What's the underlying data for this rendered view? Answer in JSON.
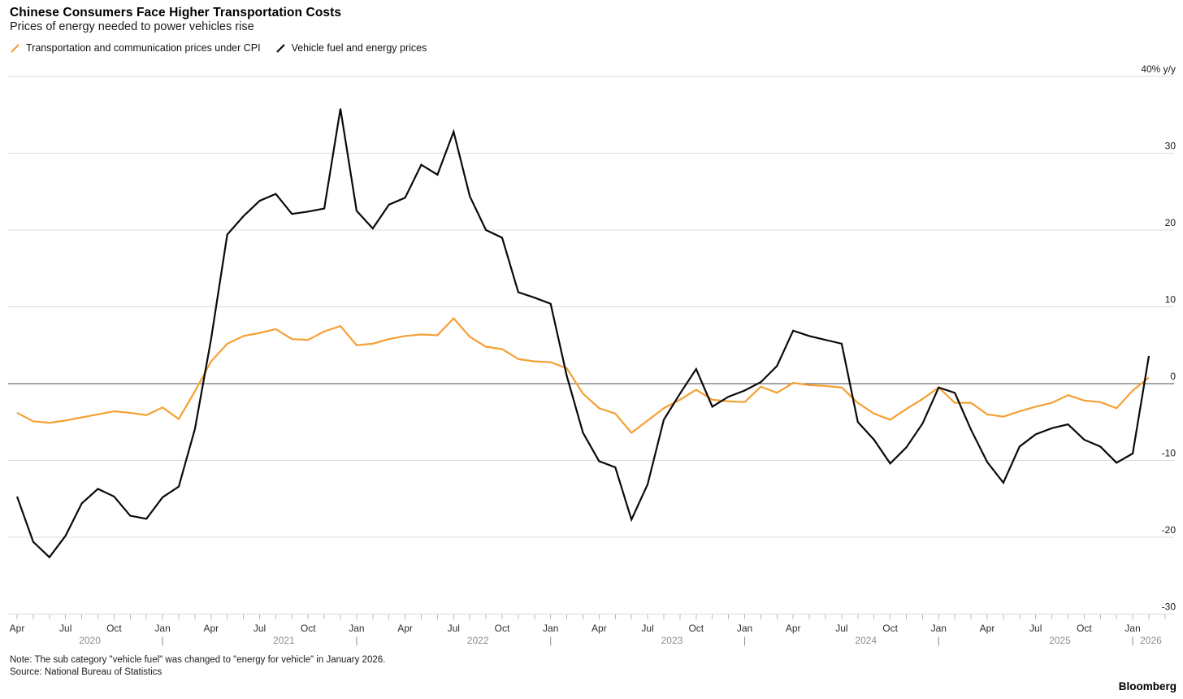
{
  "header": {
    "title": "Chinese Consumers Face Higher Transportation Costs",
    "subtitle": "Prices of energy needed to power vehicles rise"
  },
  "legend": [
    {
      "label": "Transportation and communication prices under CPI",
      "color": "#F5A033"
    },
    {
      "label": "Vehicle fuel and energy prices",
      "color": "#0a0a0a"
    }
  ],
  "footer": {
    "note": "Note: The sub category \"vehicle fuel\" was changed to \"energy for vehicle\" in January 2026.",
    "source": "Source: National Bureau of Statistics",
    "brand": "Bloomberg"
  },
  "colors": {
    "gridline": "#dcdcdc",
    "zero_line": "#4d4d4d",
    "tick": "#b9b9b9",
    "axis_label": "#1a1a1a",
    "month_label": "#2e2e2e",
    "year_label": "#8c8c8c"
  },
  "chart_data": {
    "type": "line",
    "title": "Chinese Consumers Face Higher Transportation Costs",
    "subtitle": "Prices of energy needed to power vehicles rise",
    "ylabel": "",
    "xlabel": "",
    "ylim": [
      -30,
      40
    ],
    "y_ticks": [
      40,
      30,
      20,
      10,
      0,
      -10,
      -20,
      -30
    ],
    "y_top_label": "40% y/y",
    "grid": "horizontal",
    "legend_position": "top-left",
    "years": [
      "2020",
      "2021",
      "2022",
      "2023",
      "2024",
      "2025",
      "2026"
    ],
    "x": [
      "2020-04",
      "2020-05",
      "2020-06",
      "2020-07",
      "2020-08",
      "2020-09",
      "2020-10",
      "2020-11",
      "2020-12",
      "2021-01",
      "2021-02",
      "2021-03",
      "2021-04",
      "2021-05",
      "2021-06",
      "2021-07",
      "2021-08",
      "2021-09",
      "2021-10",
      "2021-11",
      "2021-12",
      "2022-01",
      "2022-02",
      "2022-03",
      "2022-04",
      "2022-05",
      "2022-06",
      "2022-07",
      "2022-08",
      "2022-09",
      "2022-10",
      "2022-11",
      "2022-12",
      "2023-01",
      "2023-02",
      "2023-03",
      "2023-04",
      "2023-05",
      "2023-06",
      "2023-07",
      "2023-08",
      "2023-09",
      "2023-10",
      "2023-11",
      "2023-12",
      "2024-01",
      "2024-02",
      "2024-03",
      "2024-04",
      "2024-05",
      "2024-06",
      "2024-07",
      "2024-08",
      "2024-09",
      "2024-10",
      "2024-11",
      "2024-12",
      "2025-01",
      "2025-02",
      "2025-03",
      "2025-04",
      "2025-05",
      "2025-06",
      "2025-07",
      "2025-08",
      "2025-09",
      "2025-10",
      "2025-11",
      "2025-12",
      "2026-01",
      "2026-02"
    ],
    "series": [
      {
        "id": "cpi-transport",
        "name": "Transportation and communication prices under CPI",
        "color": "#F5A033",
        "values": [
          -3.8,
          -4.9,
          -5.1,
          -4.8,
          -4.4,
          -4.0,
          -3.6,
          -3.8,
          -4.1,
          -3.1,
          -4.6,
          -1.0,
          2.9,
          5.2,
          6.2,
          6.6,
          7.1,
          5.8,
          5.7,
          6.8,
          7.5,
          5.0,
          5.2,
          5.8,
          6.2,
          6.4,
          6.3,
          8.5,
          6.1,
          4.8,
          4.5,
          3.2,
          2.9,
          2.8,
          2.0,
          -1.3,
          -3.2,
          -3.9,
          -6.4,
          -4.8,
          -3.2,
          -2.1,
          -0.8,
          -2.1,
          -2.3,
          -2.4,
          -0.4,
          -1.2,
          0.1,
          -0.2,
          -0.3,
          -0.5,
          -2.5,
          -3.9,
          -4.7,
          -3.3,
          -2.0,
          -0.5,
          -2.5,
          -2.5,
          -4.0,
          -4.3,
          -3.6,
          -3.0,
          -2.5,
          -1.5,
          -2.2,
          -2.4,
          -3.2,
          -0.9,
          0.8
        ]
      },
      {
        "id": "vehicle-fuel",
        "name": "Vehicle fuel and energy prices",
        "color": "#0a0a0a",
        "values": [
          -14.7,
          -20.6,
          -22.6,
          -19.8,
          -15.6,
          -13.7,
          -14.7,
          -17.2,
          -17.6,
          -14.8,
          -13.4,
          -5.9,
          5.8,
          19.4,
          21.8,
          23.8,
          24.7,
          22.1,
          22.4,
          22.8,
          35.8,
          22.5,
          20.2,
          23.3,
          24.2,
          28.5,
          27.2,
          32.8,
          24.4,
          20.0,
          19.0,
          11.9,
          11.2,
          10.4,
          1.0,
          -6.4,
          -10.1,
          -10.9,
          -17.7,
          -13.1,
          -4.7,
          -1.3,
          1.9,
          -3.0,
          -1.7,
          -0.9,
          0.2,
          2.3,
          6.9,
          6.2,
          5.7,
          5.2,
          -5.0,
          -7.3,
          -10.4,
          -8.3,
          -5.2,
          -0.5,
          -1.2,
          -6.0,
          -10.2,
          -12.9,
          -8.2,
          -6.6,
          -5.8,
          -5.3,
          -7.3,
          -8.2,
          -10.3,
          -9.1,
          3.6
        ]
      }
    ]
  }
}
